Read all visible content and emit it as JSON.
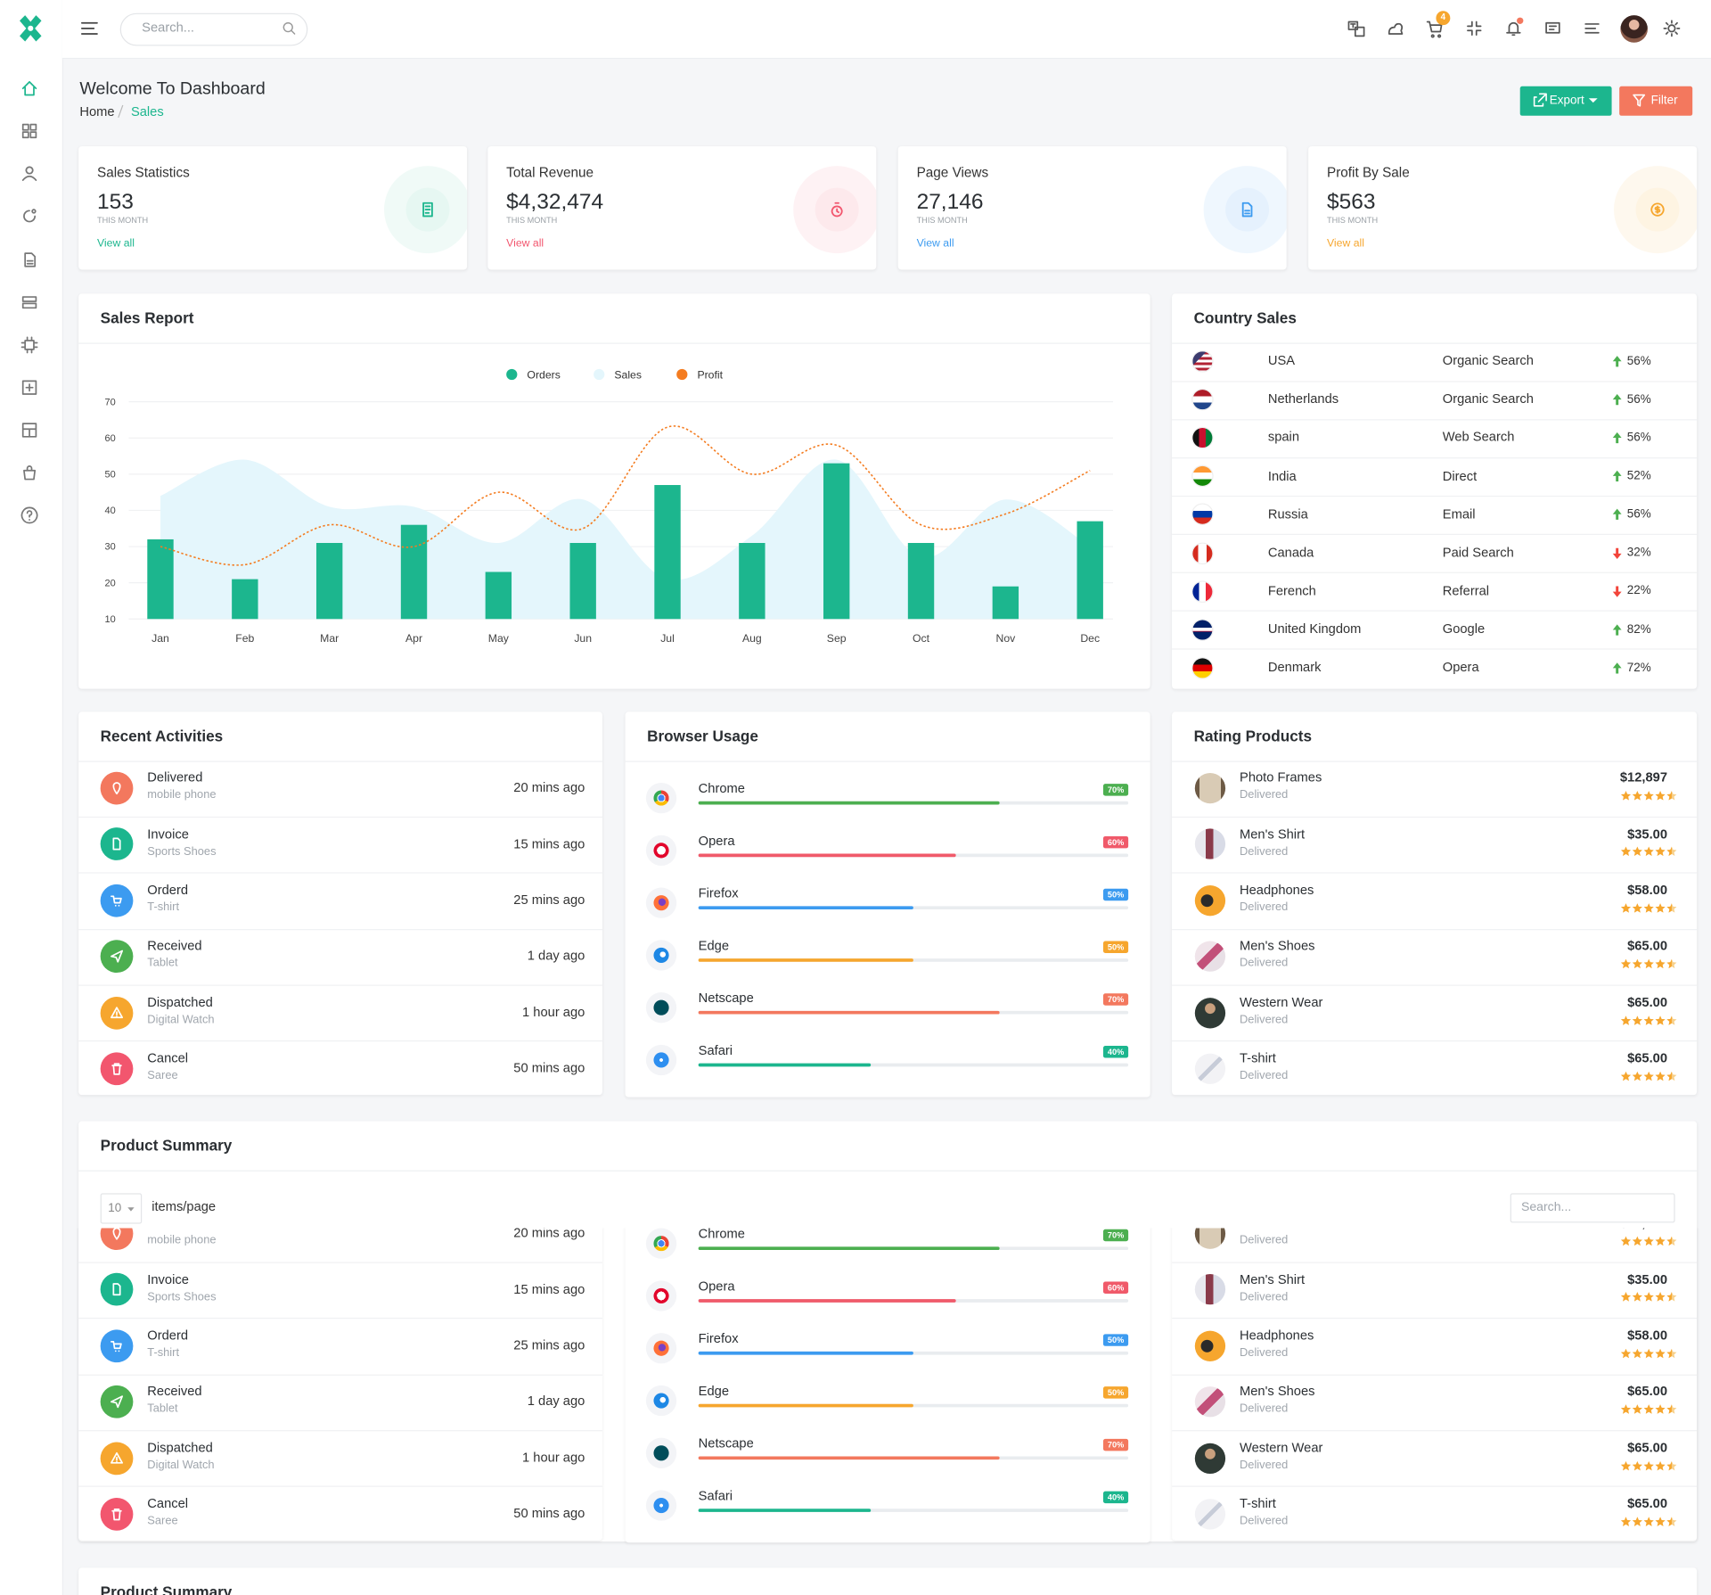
{
  "header": {
    "search_placeholder": "Search...",
    "cart_count": 4
  },
  "page": {
    "title": "Welcome To Dashboard",
    "breadcrumb": [
      "Home",
      "Sales"
    ],
    "actions": [
      "Export",
      "Filter"
    ]
  },
  "stats": [
    {
      "title": "Sales Statistics",
      "value": "153",
      "period": "THIS MONTH",
      "link": "View all",
      "color": "#1cb68e"
    },
    {
      "title": "Total Revenue",
      "value": "$4,32,474",
      "period": "THIS MONTH",
      "link": "View all",
      "color": "#f2566e"
    },
    {
      "title": "Page Views",
      "value": "27,146",
      "period": "THIS MONTH",
      "link": "View all",
      "color": "#3c9bf0"
    },
    {
      "title": "Profit By Sale",
      "value": "$563",
      "period": "THIS MONTH",
      "link": "View all",
      "color": "#f6a62e"
    }
  ],
  "sales_report": {
    "title": "Sales Report",
    "type": "bar",
    "categories": [
      "Jan",
      "Feb",
      "Mar",
      "Apr",
      "May",
      "Jun",
      "Jul",
      "Aug",
      "Sep",
      "Oct",
      "Nov",
      "Dec"
    ],
    "series": [
      {
        "name": "Orders",
        "type": "bar",
        "color": "#1cb68e",
        "values": [
          32,
          21,
          31,
          36,
          23,
          31,
          47,
          31,
          53,
          31,
          19,
          37
        ]
      },
      {
        "name": "Sales",
        "type": "area",
        "color": "#e4f6fc",
        "values": [
          44,
          54,
          41,
          41,
          31,
          43,
          21,
          33,
          54,
          27,
          43,
          30
        ]
      },
      {
        "name": "Profit",
        "type": "line",
        "color": "#f47c20",
        "values": [
          30,
          25,
          36,
          30,
          45,
          35,
          63,
          50,
          58,
          36,
          39,
          51
        ]
      }
    ],
    "ylim": [
      10,
      70
    ],
    "yticks": [
      10,
      20,
      30,
      40,
      50,
      60,
      70
    ],
    "grid": true,
    "legend": "top"
  },
  "country_sales": {
    "title": "Country Sales",
    "rows": [
      {
        "country": "USA",
        "source": "Organic Search",
        "change": "56%",
        "trend": "up"
      },
      {
        "country": "Netherlands",
        "source": "Organic Search",
        "change": "56%",
        "trend": "up"
      },
      {
        "country": "spain",
        "source": "Web Search",
        "change": "56%",
        "trend": "up"
      },
      {
        "country": "India",
        "source": "Direct",
        "change": "52%",
        "trend": "up"
      },
      {
        "country": "Russia",
        "source": "Email",
        "change": "56%",
        "trend": "up"
      },
      {
        "country": "Canada",
        "source": "Paid Search",
        "change": "32%",
        "trend": "down"
      },
      {
        "country": "Ferench",
        "source": "Referral",
        "change": "22%",
        "trend": "down"
      },
      {
        "country": "United Kingdom",
        "source": "Google",
        "change": "82%",
        "trend": "up"
      },
      {
        "country": "Denmark",
        "source": "Opera",
        "change": "72%",
        "trend": "up"
      }
    ]
  },
  "recent_activities": {
    "title": "Recent Activities",
    "rows": [
      {
        "title": "Delivered",
        "subtitle": "mobile phone",
        "time": "20 mins ago"
      },
      {
        "title": "Invoice",
        "subtitle": "Sports Shoes",
        "time": "15 mins ago"
      },
      {
        "title": "Orderd",
        "subtitle": "T-shirt",
        "time": "25 mins ago"
      },
      {
        "title": "Received",
        "subtitle": "Tablet",
        "time": "1 day ago"
      },
      {
        "title": "Dispatched",
        "subtitle": "Digital Watch",
        "time": "1 hour ago"
      },
      {
        "title": "Cancel",
        "subtitle": "Saree",
        "time": "50 mins ago"
      }
    ]
  },
  "browser_usage": {
    "title": "Browser Usage",
    "rows": [
      {
        "name": "Chrome",
        "value": 70,
        "label": "70%",
        "color": "#4caf50"
      },
      {
        "name": "Opera",
        "value": 60,
        "label": "60%",
        "color": "#f05a6a"
      },
      {
        "name": "Firefox",
        "value": 50,
        "label": "50%",
        "color": "#3c9bf0"
      },
      {
        "name": "Edge",
        "value": 50,
        "label": "50%",
        "color": "#f6a62e"
      },
      {
        "name": "Netscape",
        "value": 70,
        "label": "70%",
        "color": "#f3785e"
      },
      {
        "name": "Safari",
        "value": 40,
        "label": "40%",
        "color": "#1cb68e"
      }
    ]
  },
  "rating_products": {
    "title": "Rating Products",
    "rows": [
      {
        "name": "Photo Frames",
        "status": "Delivered",
        "price": "$12,897",
        "rating": 4.5
      },
      {
        "name": "Men's Shirt",
        "status": "Delivered",
        "price": "$35.00",
        "rating": 4.5
      },
      {
        "name": "Headphones",
        "status": "Delivered",
        "price": "$58.00",
        "rating": 4.5
      },
      {
        "name": "Men's Shoes",
        "status": "Delivered",
        "price": "$65.00",
        "rating": 4.5
      },
      {
        "name": "Western Wear",
        "status": "Delivered",
        "price": "$65.00",
        "rating": 4.5
      },
      {
        "name": "T-shirt",
        "status": "Delivered",
        "price": "$65.00",
        "rating": 4.5
      }
    ]
  },
  "product_summary": {
    "title": "Product Summary",
    "page_size": 10,
    "page_size_label": "items/page",
    "search_placeholder": "Search..."
  }
}
